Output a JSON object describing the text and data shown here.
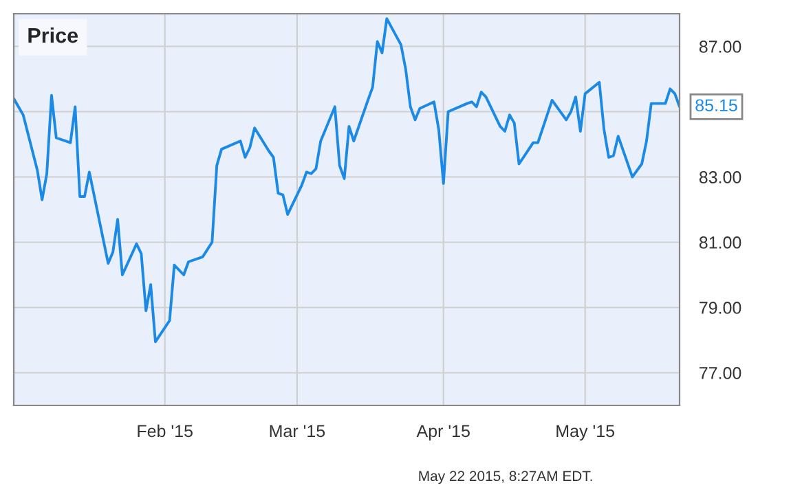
{
  "chart_data": {
    "type": "line",
    "title": "Price",
    "x": [
      "2014-12-31",
      "2015-01-02",
      "2015-01-05",
      "2015-01-06",
      "2015-01-07",
      "2015-01-08",
      "2015-01-09",
      "2015-01-12",
      "2015-01-13",
      "2015-01-14",
      "2015-01-15",
      "2015-01-16",
      "2015-01-20",
      "2015-01-21",
      "2015-01-22",
      "2015-01-23",
      "2015-01-26",
      "2015-01-27",
      "2015-01-28",
      "2015-01-29",
      "2015-01-30",
      "2015-02-02",
      "2015-02-03",
      "2015-02-05",
      "2015-02-06",
      "2015-02-09",
      "2015-02-11",
      "2015-02-12",
      "2015-02-13",
      "2015-02-17",
      "2015-02-18",
      "2015-02-19",
      "2015-02-20",
      "2015-02-23",
      "2015-02-24",
      "2015-02-25",
      "2015-02-26",
      "2015-02-27",
      "2015-03-02",
      "2015-03-03",
      "2015-03-04",
      "2015-03-05",
      "2015-03-06",
      "2015-03-09",
      "2015-03-10",
      "2015-03-11",
      "2015-03-12",
      "2015-03-13",
      "2015-03-16",
      "2015-03-17",
      "2015-03-18",
      "2015-03-19",
      "2015-03-20",
      "2015-03-23",
      "2015-03-24",
      "2015-03-25",
      "2015-03-26",
      "2015-03-27",
      "2015-03-30",
      "2015-03-31",
      "2015-04-01",
      "2015-04-02",
      "2015-04-06",
      "2015-04-07",
      "2015-04-08",
      "2015-04-09",
      "2015-04-10",
      "2015-04-13",
      "2015-04-14",
      "2015-04-15",
      "2015-04-16",
      "2015-04-17",
      "2015-04-20",
      "2015-04-21",
      "2015-04-24",
      "2015-04-27",
      "2015-04-28",
      "2015-04-29",
      "2015-04-30",
      "2015-05-01",
      "2015-05-04",
      "2015-05-05",
      "2015-05-06",
      "2015-05-07",
      "2015-05-08",
      "2015-05-11",
      "2015-05-13",
      "2015-05-14",
      "2015-05-15",
      "2015-05-18",
      "2015-05-19",
      "2015-05-20",
      "2015-05-21"
    ],
    "series": [
      {
        "color": "#1a8ae6",
        "values": [
          85.4,
          84.9,
          83.2,
          82.3,
          83.1,
          85.5,
          84.2,
          84.05,
          85.15,
          82.4,
          82.4,
          83.15,
          80.35,
          80.7,
          81.7,
          80.0,
          80.95,
          80.65,
          78.9,
          79.7,
          77.95,
          78.6,
          80.3,
          80.0,
          80.4,
          80.55,
          81.0,
          83.35,
          83.85,
          84.1,
          83.6,
          83.9,
          84.5,
          83.8,
          83.6,
          82.5,
          82.45,
          81.85,
          82.75,
          83.15,
          83.1,
          83.25,
          84.1,
          85.15,
          83.35,
          82.95,
          84.55,
          84.1,
          85.35,
          85.75,
          87.15,
          86.8,
          87.85,
          87.05,
          86.3,
          85.15,
          84.75,
          85.1,
          85.3,
          84.45,
          82.8,
          85.0,
          85.25,
          85.3,
          85.15,
          85.6,
          85.45,
          84.55,
          84.4,
          84.9,
          84.65,
          83.4,
          84.05,
          84.05,
          85.35,
          84.75,
          85.0,
          85.45,
          84.4,
          85.55,
          85.9,
          84.45,
          83.6,
          83.65,
          84.25,
          83.0,
          83.4,
          84.1,
          85.25,
          85.25,
          85.7,
          85.55,
          85.15
        ],
        "value_labels": [
          null,
          null,
          null,
          null,
          null,
          null,
          null,
          null,
          null,
          null,
          null,
          null,
          null,
          null,
          null,
          null,
          null,
          null,
          null,
          null,
          null,
          null,
          null,
          null,
          null,
          null,
          null,
          null,
          null,
          null,
          null,
          null,
          null,
          null,
          null,
          null,
          null,
          null,
          null,
          null,
          null,
          null,
          null,
          null,
          null,
          null,
          null,
          null,
          null,
          null,
          null,
          null,
          null,
          null,
          null,
          null,
          null,
          null,
          null,
          null,
          null,
          null,
          null,
          null,
          null,
          null,
          null,
          null,
          null,
          null,
          null,
          null,
          null,
          null,
          null,
          null,
          null,
          null,
          null,
          null,
          null,
          null,
          null,
          null,
          null,
          null,
          null,
          null,
          null,
          null,
          null,
          null,
          "85.15"
        ]
      }
    ],
    "xlim": [
      "2014-12-31",
      "2015-05-21"
    ],
    "xticks": [
      {
        "value": "2015-02-01",
        "label": "Feb '15"
      },
      {
        "value": "2015-03-01",
        "label": "Mar '15"
      },
      {
        "value": "2015-04-01",
        "label": "Apr '15"
      },
      {
        "value": "2015-05-01",
        "label": "May '15"
      }
    ],
    "ylim": [
      76,
      88
    ],
    "yticks": [
      {
        "value": 77,
        "label": "77.00"
      },
      {
        "value": 79,
        "label": "79.00"
      },
      {
        "value": 81,
        "label": "81.00"
      },
      {
        "value": 83,
        "label": "83.00"
      },
      {
        "value": 85,
        "label": null
      },
      {
        "value": 87,
        "label": "87.00"
      }
    ],
    "grid": true,
    "annotations": [
      "May 22 2015, 8:27AM EDT."
    ]
  }
}
